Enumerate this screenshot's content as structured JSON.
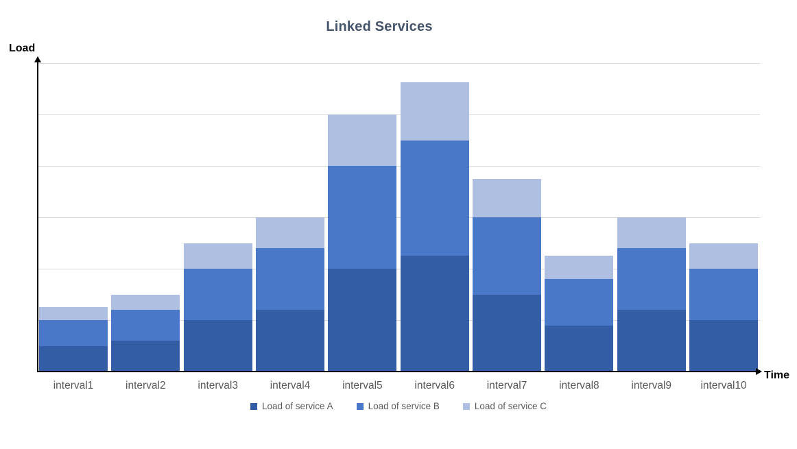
{
  "title": "Linked Services",
  "y_axis": {
    "label": "Load"
  },
  "x_axis": {
    "label": "Time"
  },
  "chart_data": {
    "type": "bar",
    "stacked": true,
    "title": "Linked Services",
    "xlabel": "Time",
    "ylabel": "Load",
    "categories": [
      "interval1",
      "interval2",
      "interval3",
      "interval4",
      "interval5",
      "interval6",
      "interval7",
      "interval8",
      "interval9",
      "interval10"
    ],
    "series": [
      {
        "name": "Load of service A",
        "color": "#335EA6",
        "values": [
          10,
          12,
          20,
          24,
          40,
          45,
          30,
          18,
          24,
          20
        ]
      },
      {
        "name": "Load of service B",
        "color": "#4A78C9",
        "values": [
          10,
          12,
          20,
          24,
          40,
          45,
          30,
          18,
          24,
          20
        ]
      },
      {
        "name": "Load of service C",
        "color": "#AFBFE2",
        "values": [
          5,
          6,
          10,
          12,
          20,
          22.5,
          15,
          9,
          12,
          10
        ]
      }
    ],
    "ylim": [
      0,
      120
    ],
    "gridline_interval": 20,
    "y_tick_labels_visible": false,
    "grid": "horizontal",
    "legend_position": "bottom"
  },
  "colors": {
    "title": "#44546A",
    "axis_line": "#000000",
    "axis_title": "#000000",
    "tick_label": "#595959",
    "legend_text": "#595959",
    "gridline": "#D9D9D9",
    "background": "#FFFFFF"
  }
}
